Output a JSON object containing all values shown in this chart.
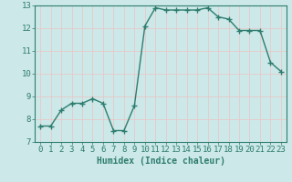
{
  "x": [
    0,
    1,
    2,
    3,
    4,
    5,
    6,
    7,
    8,
    9,
    10,
    11,
    12,
    13,
    14,
    15,
    16,
    17,
    18,
    19,
    20,
    21,
    22,
    23
  ],
  "y": [
    7.7,
    7.7,
    8.4,
    8.7,
    8.7,
    8.9,
    8.7,
    7.5,
    7.5,
    8.6,
    12.1,
    12.9,
    12.8,
    12.8,
    12.8,
    12.8,
    12.9,
    12.5,
    12.4,
    11.9,
    11.9,
    11.9,
    10.5,
    10.1
  ],
  "line_color": "#2e7d6e",
  "marker": "+",
  "marker_size": 4,
  "linewidth": 1.0,
  "xlabel": "Humidex (Indice chaleur)",
  "xlim": [
    -0.5,
    23.5
  ],
  "ylim": [
    7,
    13
  ],
  "yticks": [
    7,
    8,
    9,
    10,
    11,
    12,
    13
  ],
  "xticks": [
    0,
    1,
    2,
    3,
    4,
    5,
    6,
    7,
    8,
    9,
    10,
    11,
    12,
    13,
    14,
    15,
    16,
    17,
    18,
    19,
    20,
    21,
    22,
    23
  ],
  "xtick_labels": [
    "0",
    "1",
    "2",
    "3",
    "4",
    "5",
    "6",
    "7",
    "8",
    "9",
    "10",
    "11",
    "12",
    "13",
    "14",
    "15",
    "16",
    "17",
    "18",
    "19",
    "20",
    "21",
    "22",
    "23"
  ],
  "background_color": "#cce8e8",
  "grid_color": "#e8c8c8",
  "tick_color": "#2e7d6e",
  "label_color": "#2e7d6e",
  "xlabel_fontsize": 7,
  "tick_fontsize": 6.5
}
